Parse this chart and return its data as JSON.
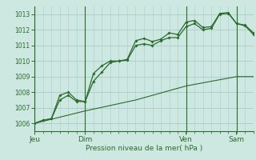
{
  "bg_color": "#cce8e0",
  "grid_color": "#aacccc",
  "line_color": "#2d6a2d",
  "title": "Pression niveau de la mer( hPa )",
  "ylim": [
    1005.5,
    1013.5
  ],
  "yticks": [
    1006,
    1007,
    1008,
    1009,
    1010,
    1011,
    1012,
    1013
  ],
  "day_labels": [
    "Jeu",
    "Dim",
    "Ven",
    "Sam"
  ],
  "day_positions": [
    0.0,
    0.23,
    0.69,
    0.92
  ],
  "xlim": [
    0.0,
    1.0
  ],
  "line1_x": [
    0.0,
    0.038,
    0.077,
    0.115,
    0.154,
    0.192,
    0.231,
    0.269,
    0.308,
    0.346,
    0.385,
    0.423,
    0.462,
    0.5,
    0.538,
    0.577,
    0.615,
    0.654,
    0.692,
    0.731,
    0.769,
    0.808,
    0.846,
    0.885,
    0.923,
    0.962,
    1.0
  ],
  "line1_y": [
    1006.0,
    1006.2,
    1006.3,
    1007.8,
    1008.0,
    1007.5,
    1007.4,
    1009.2,
    1009.7,
    1010.0,
    1010.0,
    1010.1,
    1011.3,
    1011.45,
    1011.25,
    1011.4,
    1011.8,
    1011.7,
    1012.5,
    1012.6,
    1012.15,
    1012.2,
    1013.05,
    1013.1,
    1012.4,
    1012.3,
    1011.8
  ],
  "line2_x": [
    0.0,
    0.038,
    0.077,
    0.115,
    0.154,
    0.192,
    0.231,
    0.269,
    0.308,
    0.346,
    0.385,
    0.423,
    0.462,
    0.5,
    0.538,
    0.577,
    0.615,
    0.654,
    0.692,
    0.731,
    0.769,
    0.808,
    0.846,
    0.885,
    0.923,
    0.962,
    1.0
  ],
  "line2_y": [
    1006.0,
    1006.2,
    1006.3,
    1007.5,
    1007.8,
    1007.4,
    1007.4,
    1008.7,
    1009.3,
    1009.9,
    1010.0,
    1010.05,
    1011.0,
    1011.1,
    1011.0,
    1011.3,
    1011.5,
    1011.5,
    1012.2,
    1012.4,
    1012.0,
    1012.1,
    1013.0,
    1013.05,
    1012.4,
    1012.25,
    1011.7
  ],
  "line3_x": [
    0.0,
    0.231,
    0.462,
    0.692,
    0.923,
    1.0
  ],
  "line3_y": [
    1006.0,
    1006.8,
    1007.5,
    1008.4,
    1009.0,
    1009.0
  ],
  "vline_positions": [
    0.0,
    0.231,
    0.692,
    0.923
  ]
}
